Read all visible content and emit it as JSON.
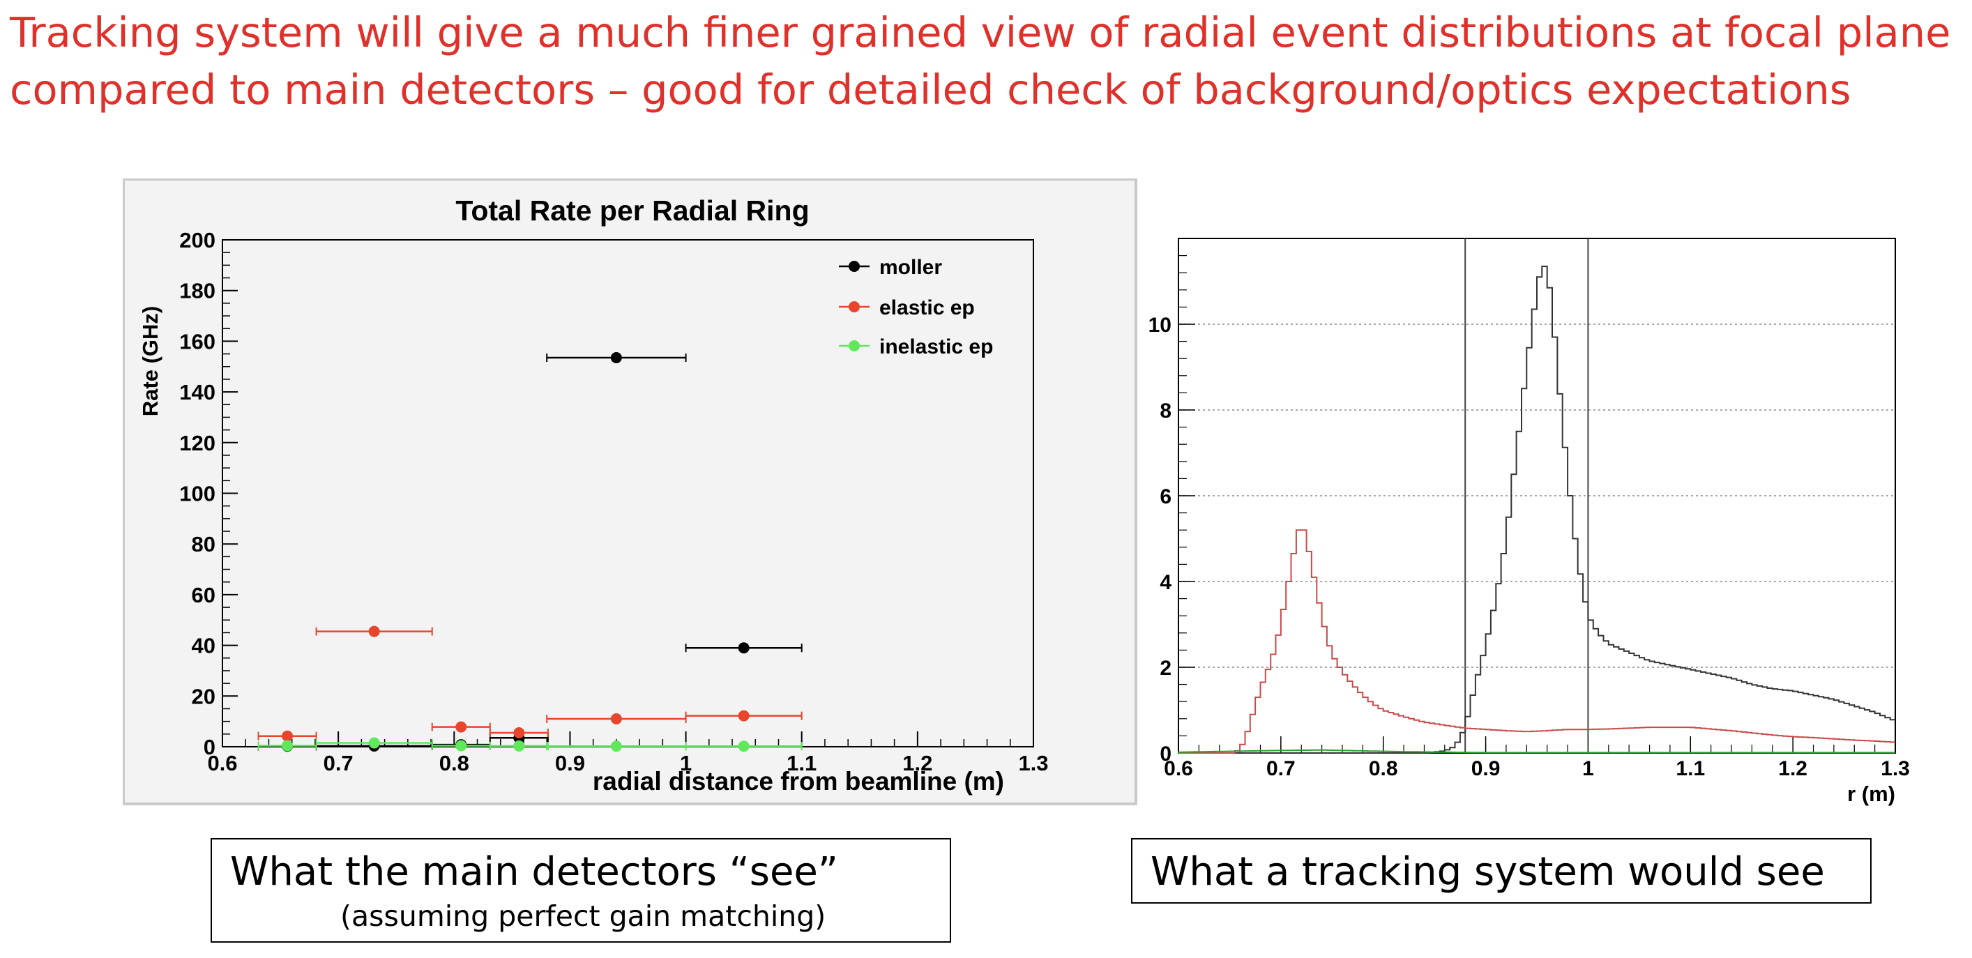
{
  "heading": {
    "line1": "Tracking system will give a much finer grained view of radial event distributions at focal plane",
    "line2": "compared to main detectors – good for detailed check of background/optics expectations"
  },
  "colors": {
    "heading": "#e0302a",
    "moller": "#000000",
    "elastic": "#e8452c",
    "inelastic": "#5ee85a",
    "hist_moller": "#333333",
    "hist_elastic": "#c84a4a",
    "hist_inelastic": "#2aa02a"
  },
  "captions": {
    "left_main": "What the main detectors “see”",
    "left_sub": "(assuming perfect gain matching)",
    "right_main": "What a tracking system would see"
  },
  "chart_data": [
    {
      "type": "scatter",
      "title": "Total Rate per Radial Ring",
      "xlabel": "radial distance from beamline (m)",
      "ylabel": "Rate (GHz)",
      "xlim": [
        0.6,
        1.3
      ],
      "ylim": [
        0,
        200
      ],
      "xticks": [
        "0.6",
        "0.7",
        "0.8",
        "0.9",
        "1",
        "1.1",
        "1.2",
        "1.3"
      ],
      "yticks": [
        "0",
        "20",
        "40",
        "60",
        "80",
        "100",
        "120",
        "140",
        "160",
        "180",
        "200"
      ],
      "legend_position": "top-right",
      "series": [
        {
          "name": "moller",
          "points": [
            {
              "x": 0.656,
              "y": 0.2,
              "xerr": 0.025
            },
            {
              "x": 0.731,
              "y": 0.3,
              "xerr": 0.05
            },
            {
              "x": 0.806,
              "y": 0.8,
              "xerr": 0.025
            },
            {
              "x": 0.856,
              "y": 3.5,
              "xerr": 0.025
            },
            {
              "x": 0.94,
              "y": 153.5,
              "xerr": 0.06
            },
            {
              "x": 1.05,
              "y": 39.0,
              "xerr": 0.05
            }
          ]
        },
        {
          "name": "elastic ep",
          "points": [
            {
              "x": 0.656,
              "y": 4.2,
              "xerr": 0.025
            },
            {
              "x": 0.731,
              "y": 45.5,
              "xerr": 0.05
            },
            {
              "x": 0.806,
              "y": 7.8,
              "xerr": 0.025
            },
            {
              "x": 0.856,
              "y": 5.5,
              "xerr": 0.025
            },
            {
              "x": 0.94,
              "y": 11.0,
              "xerr": 0.06
            },
            {
              "x": 1.05,
              "y": 12.2,
              "xerr": 0.05
            }
          ]
        },
        {
          "name": "inelastic ep",
          "points": [
            {
              "x": 0.656,
              "y": 0.4,
              "xerr": 0.025
            },
            {
              "x": 0.731,
              "y": 1.5,
              "xerr": 0.05
            },
            {
              "x": 0.806,
              "y": 0.4,
              "xerr": 0.025
            },
            {
              "x": 0.856,
              "y": 0.3,
              "xerr": 0.025
            },
            {
              "x": 0.94,
              "y": 0.2,
              "xerr": 0.06
            },
            {
              "x": 1.05,
              "y": 0.2,
              "xerr": 0.05
            }
          ]
        }
      ]
    },
    {
      "type": "line",
      "title": "",
      "xlabel": "r   (m)",
      "ylabel": "",
      "xlim": [
        0.6,
        1.3
      ],
      "ylim": [
        0,
        12
      ],
      "xticks": [
        "0.6",
        "0.7",
        "0.8",
        "0.9",
        "1",
        "1.1",
        "1.2",
        "1.3"
      ],
      "yticks": [
        "0",
        "2",
        "4",
        "6",
        "8",
        "10"
      ],
      "grid_y": true,
      "vertical_lines": [
        0.88,
        1.0
      ],
      "series": [
        {
          "name": "moller",
          "points": [
            [
              0.6,
              0
            ],
            [
              0.84,
              0
            ],
            [
              0.85,
              0.02
            ],
            [
              0.86,
              0.05
            ],
            [
              0.87,
              0.15
            ],
            [
              0.875,
              0.35
            ],
            [
              0.88,
              0.6
            ],
            [
              0.885,
              1.1
            ],
            [
              0.89,
              1.6
            ],
            [
              0.9,
              2.5
            ],
            [
              0.91,
              3.6
            ],
            [
              0.92,
              5.0
            ],
            [
              0.93,
              7.0
            ],
            [
              0.94,
              9.0
            ],
            [
              0.95,
              10.8
            ],
            [
              0.955,
              11.4
            ],
            [
              0.96,
              11.3
            ],
            [
              0.965,
              10.4
            ],
            [
              0.97,
              9.0
            ],
            [
              0.98,
              6.5
            ],
            [
              0.99,
              4.5
            ],
            [
              1.0,
              3.2
            ],
            [
              1.01,
              2.8
            ],
            [
              1.02,
              2.55
            ],
            [
              1.04,
              2.35
            ],
            [
              1.06,
              2.15
            ],
            [
              1.08,
              2.05
            ],
            [
              1.1,
              1.95
            ],
            [
              1.12,
              1.85
            ],
            [
              1.14,
              1.75
            ],
            [
              1.16,
              1.6
            ],
            [
              1.18,
              1.5
            ],
            [
              1.2,
              1.45
            ],
            [
              1.22,
              1.35
            ],
            [
              1.24,
              1.25
            ],
            [
              1.26,
              1.1
            ],
            [
              1.28,
              0.95
            ],
            [
              1.3,
              0.75
            ]
          ]
        },
        {
          "name": "elastic ep",
          "points": [
            [
              0.6,
              0
            ],
            [
              0.655,
              0
            ],
            [
              0.66,
              0.1
            ],
            [
              0.665,
              0.3
            ],
            [
              0.67,
              0.7
            ],
            [
              0.675,
              1.1
            ],
            [
              0.68,
              1.5
            ],
            [
              0.685,
              1.8
            ],
            [
              0.69,
              2.1
            ],
            [
              0.695,
              2.5
            ],
            [
              0.7,
              3.0
            ],
            [
              0.705,
              3.7
            ],
            [
              0.71,
              4.3
            ],
            [
              0.715,
              5.0
            ],
            [
              0.72,
              5.4
            ],
            [
              0.725,
              5.0
            ],
            [
              0.73,
              4.4
            ],
            [
              0.735,
              3.8
            ],
            [
              0.74,
              3.2
            ],
            [
              0.745,
              2.7
            ],
            [
              0.75,
              2.3
            ],
            [
              0.76,
              1.9
            ],
            [
              0.77,
              1.6
            ],
            [
              0.78,
              1.35
            ],
            [
              0.79,
              1.15
            ],
            [
              0.8,
              1.0
            ],
            [
              0.82,
              0.85
            ],
            [
              0.84,
              0.72
            ],
            [
              0.86,
              0.65
            ],
            [
              0.88,
              0.58
            ],
            [
              0.9,
              0.55
            ],
            [
              0.92,
              0.52
            ],
            [
              0.94,
              0.5
            ],
            [
              0.96,
              0.52
            ],
            [
              0.98,
              0.55
            ],
            [
              1.0,
              0.55
            ],
            [
              1.02,
              0.56
            ],
            [
              1.04,
              0.58
            ],
            [
              1.06,
              0.6
            ],
            [
              1.08,
              0.6
            ],
            [
              1.1,
              0.6
            ],
            [
              1.12,
              0.56
            ],
            [
              1.14,
              0.52
            ],
            [
              1.16,
              0.47
            ],
            [
              1.18,
              0.42
            ],
            [
              1.2,
              0.38
            ],
            [
              1.22,
              0.36
            ],
            [
              1.24,
              0.33
            ],
            [
              1.26,
              0.3
            ],
            [
              1.28,
              0.28
            ],
            [
              1.3,
              0.25
            ]
          ]
        },
        {
          "name": "inelastic ep",
          "points": [
            [
              0.6,
              0.02
            ],
            [
              0.65,
              0.04
            ],
            [
              0.7,
              0.06
            ],
            [
              0.74,
              0.07
            ],
            [
              0.78,
              0.05
            ],
            [
              0.82,
              0.03
            ],
            [
              0.86,
              0.02
            ],
            [
              0.9,
              0.01
            ],
            [
              1.0,
              0.01
            ],
            [
              1.1,
              0.01
            ],
            [
              1.2,
              0.01
            ],
            [
              1.3,
              0.01
            ]
          ]
        }
      ]
    }
  ]
}
